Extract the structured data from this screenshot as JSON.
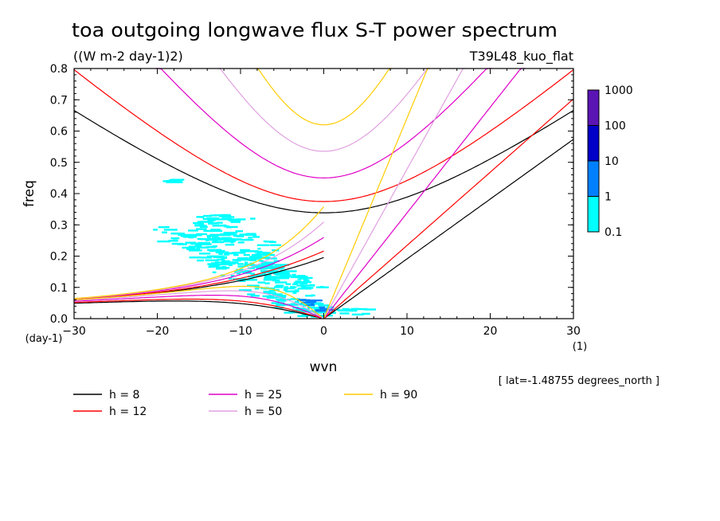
{
  "chart_data": {
    "type": "heatmap",
    "title": "toa outgoing longwave flux S-T power spectrum",
    "subtitle": "((W m-2 day-1)2)",
    "experiment": "T39L48_kuo_flat",
    "xlabel": "wvn",
    "ylabel": "freq",
    "x_unit": "(1)",
    "y_unit": "(day-1)",
    "xlim": [
      -30,
      30
    ],
    "ylim": [
      0,
      0.8
    ],
    "x_ticks": [
      -30,
      -20,
      -10,
      0,
      10,
      20,
      30
    ],
    "x_tick_labels": [
      "−30",
      "−20",
      "−10",
      "0",
      "10",
      "20",
      "30"
    ],
    "y_ticks": [
      0.0,
      0.1,
      0.2,
      0.3,
      0.4,
      0.5,
      0.6,
      0.7,
      0.8
    ],
    "y_tick_labels": [
      "0.0",
      "0.1",
      "0.2",
      "0.3",
      "0.4",
      "0.5",
      "0.6",
      "0.7",
      "0.8"
    ],
    "colorbar": {
      "labels": [
        "0.1",
        "1",
        "10",
        "100",
        "1000"
      ],
      "colors": [
        "#00ffff",
        "#0080ff",
        "#0000c8",
        "#5a14b4"
      ]
    },
    "annotation": "[ lat=-1.48755 degrees_north ]",
    "dispersion_curves": [
      {
        "label": "h =  8",
        "h": 8,
        "color": "#000000"
      },
      {
        "label": "h = 12",
        "h": 12,
        "color": "#ff0000"
      },
      {
        "label": "h = 25",
        "h": 25,
        "color": "#e000c8"
      },
      {
        "label": "h = 50",
        "h": 50,
        "color": "#e0a0e0"
      },
      {
        "label": "h = 90",
        "h": 90,
        "color": "#ffcc00"
      }
    ],
    "spectral_blobs": [
      {
        "wvn": -18,
        "freq": 0.44,
        "rw": 0.6,
        "rf": 0.004,
        "level": 0
      },
      {
        "wvn": -12,
        "freq": 0.32,
        "rw": 2.5,
        "rf": 0.01,
        "level": 0
      },
      {
        "wvn": -15,
        "freq": 0.27,
        "rw": 4.0,
        "rf": 0.03,
        "level": 0
      },
      {
        "wvn": -11,
        "freq": 0.22,
        "rw": 4.0,
        "rf": 0.04,
        "level": 0
      },
      {
        "wvn": -9,
        "freq": 0.17,
        "rw": 3.5,
        "rf": 0.035,
        "level": 0
      },
      {
        "wvn": -6,
        "freq": 0.12,
        "rw": 3.0,
        "rf": 0.04,
        "level": 0
      },
      {
        "wvn": -3,
        "freq": 0.07,
        "rw": 2.5,
        "rf": 0.04,
        "level": 0
      },
      {
        "wvn": 1,
        "freq": 0.02,
        "rw": 4.0,
        "rf": 0.012,
        "level": 0
      },
      {
        "wvn": -2,
        "freq": 0.05,
        "rw": 1.0,
        "rf": 0.01,
        "level": 1
      },
      {
        "wvn": 0,
        "freq": 0.03,
        "rw": 0.6,
        "rf": 0.005,
        "level": 1
      }
    ]
  },
  "legend_labels": [
    "h =  8",
    "h = 12",
    "h = 25",
    "h = 50",
    "h = 90"
  ]
}
